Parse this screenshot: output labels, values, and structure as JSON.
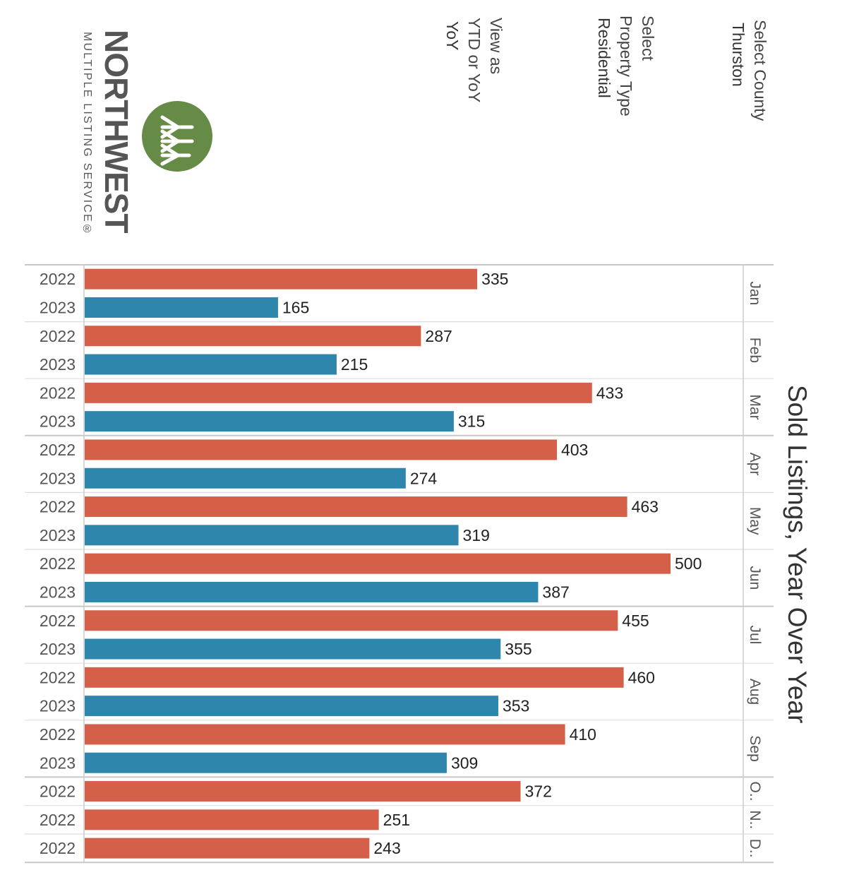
{
  "filters": {
    "county": {
      "title": "Select County",
      "value": "Thurston"
    },
    "property_type": {
      "title": "Select",
      "title_line2": "Property Type",
      "value": "Residential"
    },
    "view": {
      "title": "View as",
      "title_line2": "YTD or YoY",
      "value": "YoY"
    }
  },
  "logo": {
    "word": "NORTHWEST",
    "sub": "MULTIPLE LISTING SERVICE®"
  },
  "colors": {
    "y2022": "#d5604a",
    "y2023": "#2e86ad",
    "logo_green": "#668b46"
  },
  "chart_data": {
    "type": "bar",
    "orientation": "horizontal",
    "title": "Sold Listings, Year Over Year",
    "xlim": [
      0,
      520
    ],
    "grid": false,
    "groups": [
      {
        "month": "Jan",
        "rows": [
          {
            "year": "2022",
            "value": 335
          },
          {
            "year": "2023",
            "value": 165
          }
        ]
      },
      {
        "month": "Feb",
        "rows": [
          {
            "year": "2022",
            "value": 287
          },
          {
            "year": "2023",
            "value": 215
          }
        ]
      },
      {
        "month": "Mar",
        "rows": [
          {
            "year": "2022",
            "value": 433
          },
          {
            "year": "2023",
            "value": 315
          }
        ]
      },
      {
        "month": "Apr",
        "rows": [
          {
            "year": "2022",
            "value": 403
          },
          {
            "year": "2023",
            "value": 274
          }
        ]
      },
      {
        "month": "May",
        "rows": [
          {
            "year": "2022",
            "value": 463
          },
          {
            "year": "2023",
            "value": 319
          }
        ]
      },
      {
        "month": "Jun",
        "rows": [
          {
            "year": "2022",
            "value": 500
          },
          {
            "year": "2023",
            "value": 387
          }
        ]
      },
      {
        "month": "Jul",
        "rows": [
          {
            "year": "2022",
            "value": 455
          },
          {
            "year": "2023",
            "value": 355
          }
        ]
      },
      {
        "month": "Aug",
        "rows": [
          {
            "year": "2022",
            "value": 460
          },
          {
            "year": "2023",
            "value": 353
          }
        ]
      },
      {
        "month": "Sep",
        "rows": [
          {
            "year": "2022",
            "value": 410
          },
          {
            "year": "2023",
            "value": 309
          }
        ]
      },
      {
        "month": "O..",
        "rows": [
          {
            "year": "2022",
            "value": 372
          }
        ]
      },
      {
        "month": "N..",
        "rows": [
          {
            "year": "2022",
            "value": 251
          }
        ]
      },
      {
        "month": "D..",
        "rows": [
          {
            "year": "2022",
            "value": 243
          }
        ]
      }
    ]
  }
}
